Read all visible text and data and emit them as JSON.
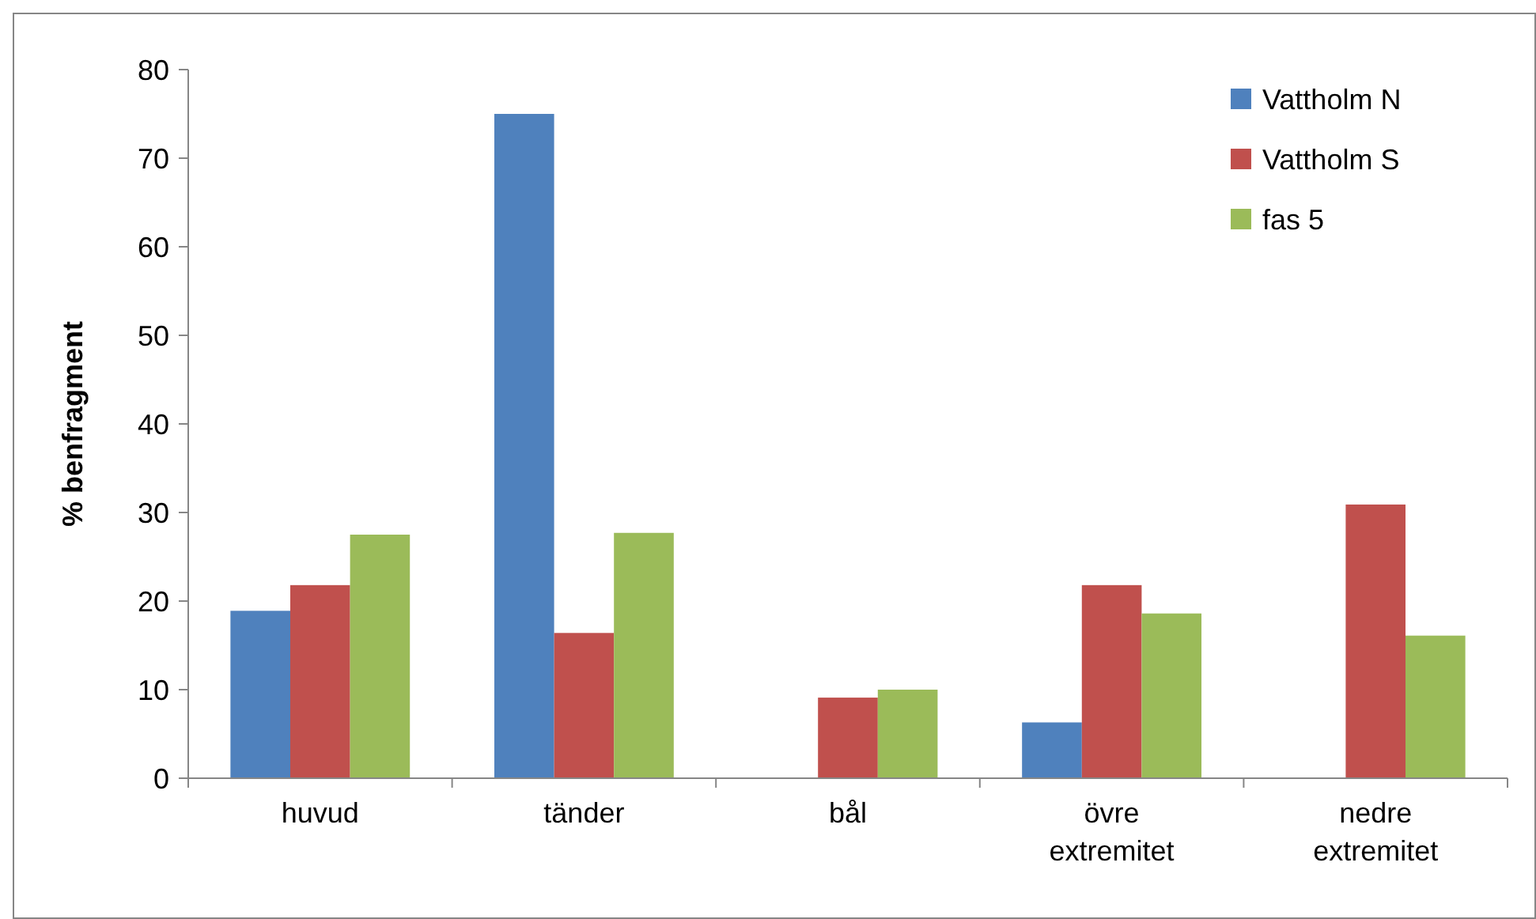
{
  "chart_data": {
    "type": "bar",
    "ylabel": "% benfragment",
    "categories": [
      "huvud",
      "tänder",
      "bål",
      "övre extremitet",
      "nedre extremitet"
    ],
    "series": [
      {
        "name": "Vattholm N",
        "color": "#4f81bd",
        "values": [
          18.9,
          75,
          0,
          6.3,
          0
        ]
      },
      {
        "name": "Vattholm S",
        "color": "#c0504d",
        "values": [
          21.8,
          16.4,
          9.1,
          21.8,
          30.9
        ]
      },
      {
        "name": "fas 5",
        "color": "#9bbb59",
        "values": [
          27.5,
          27.7,
          10,
          18.6,
          16.1
        ]
      }
    ],
    "ylim": [
      0,
      80
    ],
    "yticks": [
      0,
      10,
      20,
      30,
      40,
      50,
      60,
      70,
      80
    ],
    "grid": false,
    "legend": "top right"
  }
}
